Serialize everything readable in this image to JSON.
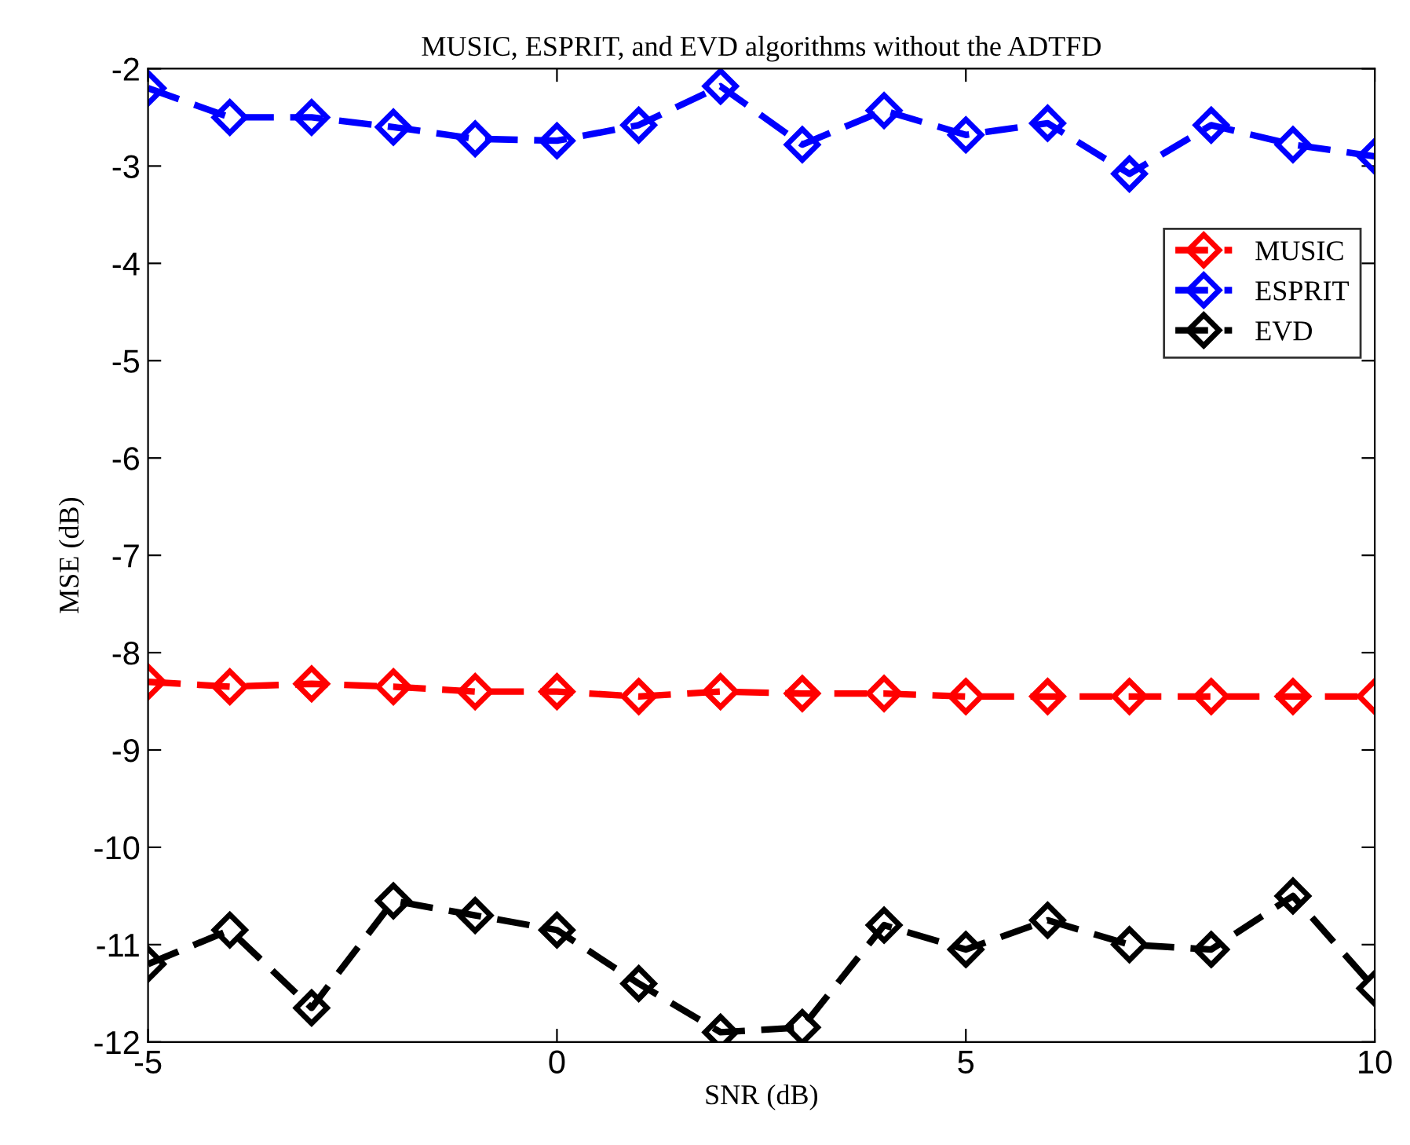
{
  "chart_data": {
    "type": "line",
    "title": "MUSIC, ESPRIT, and EVD algorithms without the ADTFD",
    "xlabel": "SNR (dB)",
    "ylabel": "MSE (dB)",
    "x": [
      -5,
      -4,
      -3,
      -2,
      -1,
      0,
      1,
      2,
      3,
      4,
      5,
      6,
      7,
      8,
      9,
      10
    ],
    "series": [
      {
        "name": "MUSIC",
        "color": "#ff0000",
        "values": [
          -8.3,
          -8.35,
          -8.32,
          -8.35,
          -8.4,
          -8.4,
          -8.45,
          -8.4,
          -8.42,
          -8.42,
          -8.45,
          -8.45,
          -8.45,
          -8.45,
          -8.45,
          -8.45
        ]
      },
      {
        "name": "ESPRIT",
        "color": "#0000ff",
        "values": [
          -2.2,
          -2.5,
          -2.5,
          -2.6,
          -2.72,
          -2.74,
          -2.58,
          -2.18,
          -2.78,
          -2.43,
          -2.68,
          -2.56,
          -3.08,
          -2.58,
          -2.78,
          -2.9
        ]
      },
      {
        "name": "EVD",
        "color": "#000000",
        "values": [
          -11.2,
          -10.85,
          -11.65,
          -10.55,
          -10.7,
          -10.85,
          -11.4,
          -11.9,
          -11.85,
          -10.8,
          -11.05,
          -10.75,
          -11.0,
          -11.05,
          -10.5,
          -11.45
        ]
      }
    ],
    "xlim": [
      -5,
      10
    ],
    "xticks": [
      -5,
      0,
      5,
      10
    ],
    "ylim": [
      -12,
      -2
    ],
    "yticks": [
      -12,
      -11,
      -10,
      -9,
      -8,
      -7,
      -6,
      -5,
      -4,
      -3,
      -2
    ],
    "grid": false,
    "legend": "top right",
    "marker": "diamond",
    "line_style": "dashed"
  }
}
